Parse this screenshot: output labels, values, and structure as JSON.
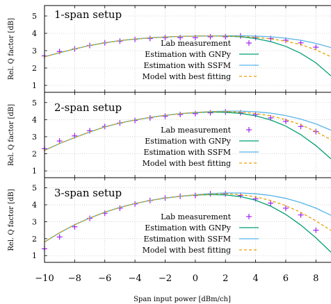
{
  "chart_data": [
    {
      "type": "line",
      "title": "1-span setup",
      "xlabel": "",
      "ylabel": "Rel. Q factor [dB]",
      "xlim": [
        -10,
        9
      ],
      "ylim": [
        0.6,
        5.6
      ],
      "xticks": [
        -10,
        -8,
        -6,
        -4,
        -2,
        0,
        2,
        4,
        6,
        8
      ],
      "xtick_labels": [],
      "yticks": [
        1,
        2,
        3,
        4,
        5
      ],
      "ytick_labels": [
        "1",
        "2",
        "3",
        "4",
        "5"
      ],
      "grid": true,
      "legend_position": "right",
      "series": [
        {
          "name": "Lab measurement",
          "style": "scatter",
          "marker": "+",
          "color": "#a020f0",
          "x": [
            -10,
            -9,
            -8,
            -7,
            -6,
            -5,
            -4,
            -3,
            -2,
            -1,
            0,
            1,
            2,
            3,
            4,
            5,
            6,
            7,
            8
          ],
          "y": [
            2.7,
            2.95,
            3.1,
            3.3,
            3.45,
            3.55,
            3.65,
            3.7,
            3.75,
            3.75,
            3.75,
            3.8,
            3.8,
            3.85,
            3.75,
            3.7,
            3.6,
            3.45,
            3.2
          ]
        },
        {
          "name": "Estimation with GNPy",
          "style": "line",
          "color": "#009e73",
          "x": [
            -10,
            -9,
            -8,
            -7,
            -6,
            -5,
            -4,
            -3,
            -2,
            -1,
            0,
            1,
            2,
            3,
            4,
            5,
            6,
            7,
            8,
            9
          ],
          "y": [
            2.65,
            2.88,
            3.1,
            3.3,
            3.45,
            3.58,
            3.67,
            3.74,
            3.79,
            3.82,
            3.84,
            3.85,
            3.84,
            3.8,
            3.7,
            3.52,
            3.25,
            2.85,
            2.3,
            1.55
          ]
        },
        {
          "name": "Estimation with SSFM",
          "style": "line",
          "color": "#56b4e9",
          "x": [
            -10,
            -9,
            -8,
            -7,
            -6,
            -5,
            -4,
            -3,
            -2,
            -1,
            0,
            1,
            2,
            3,
            4,
            5,
            6,
            7,
            8,
            9
          ],
          "y": [
            2.65,
            2.88,
            3.1,
            3.3,
            3.45,
            3.58,
            3.67,
            3.74,
            3.79,
            3.82,
            3.84,
            3.85,
            3.86,
            3.86,
            3.84,
            3.8,
            3.72,
            3.6,
            3.42,
            3.18
          ]
        },
        {
          "name": "Model with best fitting",
          "style": "dashed",
          "color": "#e69f00",
          "x": [
            -10,
            -9,
            -8,
            -7,
            -6,
            -5,
            -4,
            -3,
            -2,
            -1,
            0,
            1,
            2,
            3,
            4,
            5,
            6,
            7,
            8,
            9
          ],
          "y": [
            2.65,
            2.88,
            3.1,
            3.3,
            3.45,
            3.58,
            3.67,
            3.74,
            3.79,
            3.82,
            3.84,
            3.85,
            3.84,
            3.82,
            3.77,
            3.68,
            3.55,
            3.35,
            3.05,
            2.65
          ]
        }
      ]
    },
    {
      "type": "line",
      "title": "2-span setup",
      "xlabel": "",
      "ylabel": "Rel. Q factor [dB]",
      "xlim": [
        -10,
        9
      ],
      "ylim": [
        0.6,
        5.6
      ],
      "xticks": [
        -10,
        -8,
        -6,
        -4,
        -2,
        0,
        2,
        4,
        6,
        8
      ],
      "xtick_labels": [],
      "yticks": [
        1,
        2,
        3,
        4,
        5
      ],
      "ytick_labels": [
        "1",
        "2",
        "3",
        "4",
        "5"
      ],
      "grid": true,
      "legend_position": "right",
      "series": [
        {
          "name": "Lab measurement",
          "style": "scatter",
          "marker": "+",
          "color": "#a020f0",
          "x": [
            -10,
            -9,
            -8,
            -7,
            -6,
            -5,
            -4,
            -3,
            -2,
            -1,
            0,
            1,
            2,
            3,
            4,
            5,
            6,
            7,
            8
          ],
          "y": [
            2.3,
            2.75,
            3.05,
            3.35,
            3.6,
            3.8,
            3.95,
            4.1,
            4.2,
            4.3,
            4.35,
            4.4,
            4.45,
            4.4,
            4.3,
            4.1,
            3.9,
            3.6,
            3.3
          ]
        },
        {
          "name": "Estimation with GNPy",
          "style": "line",
          "color": "#009e73",
          "x": [
            -10,
            -9,
            -8,
            -7,
            -6,
            -5,
            -4,
            -3,
            -2,
            -1,
            0,
            1,
            2,
            3,
            4,
            5,
            6,
            7,
            8,
            9
          ],
          "y": [
            2.2,
            2.6,
            2.95,
            3.28,
            3.57,
            3.8,
            3.98,
            4.13,
            4.25,
            4.35,
            4.41,
            4.44,
            4.43,
            4.37,
            4.22,
            3.98,
            3.62,
            3.12,
            2.48,
            1.7
          ]
        },
        {
          "name": "Estimation with SSFM",
          "style": "line",
          "color": "#56b4e9",
          "x": [
            -10,
            -9,
            -8,
            -7,
            -6,
            -5,
            -4,
            -3,
            -2,
            -1,
            0,
            1,
            2,
            3,
            4,
            5,
            6,
            7,
            8,
            9
          ],
          "y": [
            2.2,
            2.6,
            2.95,
            3.28,
            3.57,
            3.8,
            3.98,
            4.13,
            4.25,
            4.35,
            4.42,
            4.47,
            4.5,
            4.5,
            4.46,
            4.38,
            4.24,
            4.03,
            3.75,
            3.38
          ]
        },
        {
          "name": "Model with best fitting",
          "style": "dashed",
          "color": "#e69f00",
          "x": [
            -10,
            -9,
            -8,
            -7,
            -6,
            -5,
            -4,
            -3,
            -2,
            -1,
            0,
            1,
            2,
            3,
            4,
            5,
            6,
            7,
            8,
            9
          ],
          "y": [
            2.2,
            2.6,
            2.95,
            3.28,
            3.57,
            3.8,
            3.98,
            4.13,
            4.25,
            4.35,
            4.42,
            4.46,
            4.47,
            4.44,
            4.36,
            4.22,
            4.0,
            3.7,
            3.3,
            2.82
          ]
        }
      ]
    },
    {
      "type": "line",
      "title": "3-span setup",
      "xlabel": "Span input power [dBm/ch]",
      "ylabel": "Rel. Q factor [dB]",
      "xlim": [
        -10,
        9
      ],
      "ylim": [
        0.6,
        5.6
      ],
      "xticks": [
        -10,
        -8,
        -6,
        -4,
        -2,
        0,
        2,
        4,
        6,
        8
      ],
      "xtick_labels": [
        "−10",
        "−8",
        "−6",
        "−4",
        "−2",
        "0",
        "2",
        "4",
        "6",
        "8"
      ],
      "yticks": [
        1,
        2,
        3,
        4,
        5
      ],
      "ytick_labels": [
        "1",
        "2",
        "3",
        "4",
        "5"
      ],
      "grid": true,
      "legend_position": "right",
      "series": [
        {
          "name": "Lab measurement",
          "style": "scatter",
          "marker": "+",
          "color": "#a020f0",
          "x": [
            -10,
            -9,
            -8,
            -7,
            -6,
            -5,
            -4,
            -3,
            -2,
            -1,
            0,
            1,
            2,
            3,
            4,
            5,
            6,
            7,
            8
          ],
          "y": [
            1.4,
            2.1,
            2.7,
            3.2,
            3.5,
            3.8,
            4.05,
            4.25,
            4.4,
            4.5,
            4.55,
            4.65,
            4.65,
            4.55,
            4.35,
            4.1,
            3.8,
            3.4,
            2.5
          ]
        },
        {
          "name": "Estimation with GNPy",
          "style": "line",
          "color": "#009e73",
          "x": [
            -10,
            -9,
            -8,
            -7,
            -6,
            -5,
            -4,
            -3,
            -2,
            -1,
            0,
            1,
            2,
            3,
            4,
            5,
            6,
            7,
            8,
            9
          ],
          "y": [
            1.8,
            2.35,
            2.82,
            3.22,
            3.56,
            3.84,
            4.07,
            4.25,
            4.4,
            4.5,
            4.57,
            4.6,
            4.58,
            4.48,
            4.27,
            3.92,
            3.43,
            2.8,
            2.05,
            1.2
          ]
        },
        {
          "name": "Estimation with SSFM",
          "style": "line",
          "color": "#56b4e9",
          "x": [
            -10,
            -9,
            -8,
            -7,
            -6,
            -5,
            -4,
            -3,
            -2,
            -1,
            0,
            1,
            2,
            3,
            4,
            5,
            6,
            7,
            8,
            9
          ],
          "y": [
            1.8,
            2.35,
            2.82,
            3.22,
            3.56,
            3.84,
            4.07,
            4.25,
            4.4,
            4.5,
            4.59,
            4.66,
            4.7,
            4.7,
            4.65,
            4.55,
            4.38,
            4.13,
            3.8,
            3.38
          ]
        },
        {
          "name": "Model with best fitting",
          "style": "dashed",
          "color": "#e69f00",
          "x": [
            -10,
            -9,
            -8,
            -7,
            -6,
            -5,
            -4,
            -3,
            -2,
            -1,
            0,
            1,
            2,
            3,
            4,
            5,
            6,
            7,
            8,
            9
          ],
          "y": [
            1.8,
            2.35,
            2.82,
            3.22,
            3.56,
            3.84,
            4.07,
            4.25,
            4.4,
            4.5,
            4.58,
            4.63,
            4.65,
            4.6,
            4.47,
            4.25,
            3.95,
            3.55,
            3.05,
            2.48
          ]
        }
      ]
    }
  ]
}
